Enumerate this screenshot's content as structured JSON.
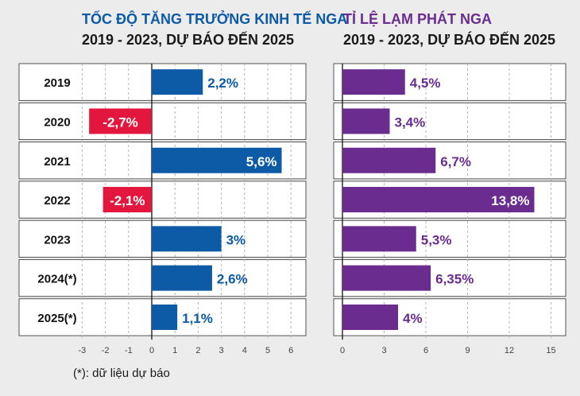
{
  "gdp_title": "TỐC ĐỘ TĂNG TRƯỞNG KINH TẾ NGA",
  "gdp_subtitle": "2019 - 2023, DỰ BÁO ĐẾN 2025",
  "inflation_title": "TỈ LỆ LẠM PHÁT NGA",
  "inflation_subtitle": "2019 - 2023, DỰ BÁO ĐẾN 2025",
  "footnote": "(*): dữ liệu dự báo",
  "colors": {
    "gdp_positive": "#0d5aa7",
    "gdp_negative": "#e3173e",
    "inflation": "#6a2c8f",
    "row_alt": "#ffffff",
    "background": "#ececec"
  },
  "chart_data": [
    {
      "type": "bar",
      "orientation": "horizontal",
      "title": "TỐC ĐỘ TĂNG TRƯỞNG KINH TẾ NGA",
      "subtitle": "2019 - 2023, DỰ BÁO ĐẾN 2025",
      "categories": [
        "2019",
        "2020",
        "2021",
        "2022",
        "2023",
        "2024(*)",
        "2025(*)"
      ],
      "values": [
        2.2,
        -2.7,
        5.6,
        -2.1,
        3,
        2.6,
        1.1
      ],
      "labels": [
        "2,2%",
        "-2,7%",
        "5,6%",
        "-2,1%",
        "3%",
        "2,6%",
        "1,1%"
      ],
      "xlim": [
        -3,
        6
      ],
      "xticks": [
        "-3",
        "-2",
        "-1",
        "0",
        "1",
        "2",
        "3",
        "4",
        "5",
        "6"
      ],
      "grid": true
    },
    {
      "type": "bar",
      "orientation": "horizontal",
      "title": "TỈ LỆ LẠM PHÁT NGA",
      "subtitle": "2019 - 2023, DỰ BÁO ĐẾN 2025",
      "categories": [
        "2019",
        "2020",
        "2021",
        "2022",
        "2023",
        "2024(*)",
        "2025(*)"
      ],
      "values": [
        4.5,
        3.4,
        6.7,
        13.8,
        5.3,
        6.35,
        4
      ],
      "labels": [
        "4,5%",
        "3,4%",
        "6,7%",
        "13,8%",
        "5,3%",
        "6,35%",
        "4%"
      ],
      "xlim": [
        0,
        15
      ],
      "xticks": [
        "0",
        "3",
        "6",
        "9",
        "12",
        "15"
      ],
      "grid": true
    }
  ]
}
